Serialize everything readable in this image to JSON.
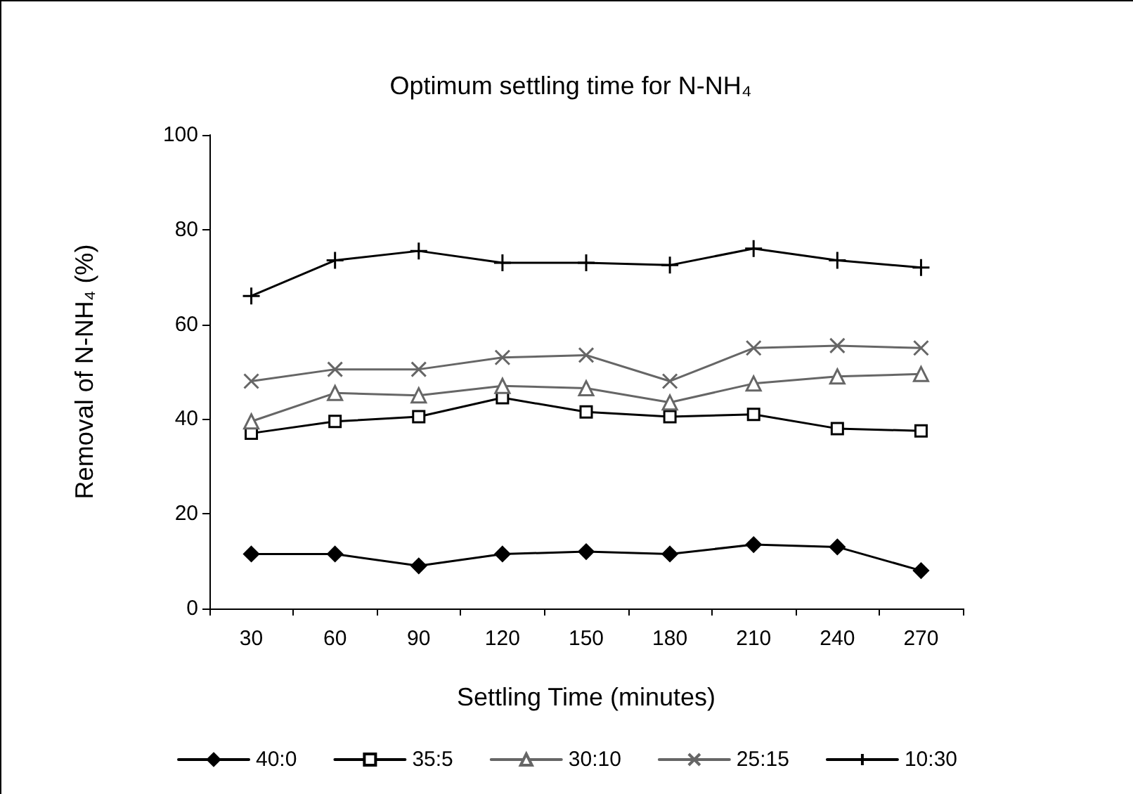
{
  "chart_data": {
    "type": "line",
    "title": "Optimum settling time for N-NH₄",
    "xlabel": "Settling Time (minutes)",
    "ylabel": "Removal of N-NH₄ (%)",
    "categories": [
      "30",
      "60",
      "90",
      "120",
      "150",
      "180",
      "210",
      "240",
      "270"
    ],
    "ylim": [
      0,
      100
    ],
    "yticks": [
      0,
      20,
      40,
      60,
      80,
      100
    ],
    "grid": false,
    "legend": "bottom",
    "line_style": "solid",
    "series": [
      {
        "name": "40:0",
        "color": "#000000",
        "marker": "diamond",
        "values": [
          11.5,
          11.5,
          9,
          11.5,
          12,
          11.5,
          13.5,
          13,
          8
        ]
      },
      {
        "name": "35:5",
        "color": "#000000",
        "marker": "square",
        "values": [
          37,
          39.5,
          40.5,
          44.5,
          41.5,
          40.5,
          41,
          38,
          37.5
        ]
      },
      {
        "name": "30:10",
        "color": "#666666",
        "marker": "triangle",
        "values": [
          39.5,
          45.5,
          45,
          47,
          46.5,
          43.5,
          47.5,
          49,
          49.5
        ]
      },
      {
        "name": "25:15",
        "color": "#666666",
        "marker": "x",
        "values": [
          48,
          50.5,
          50.5,
          53,
          53.5,
          48,
          55,
          55.5,
          55
        ]
      },
      {
        "name": "10:30",
        "color": "#000000",
        "marker": "cross",
        "values": [
          66,
          73.5,
          75.5,
          73,
          73,
          72.5,
          76,
          73.5,
          72
        ]
      }
    ]
  }
}
